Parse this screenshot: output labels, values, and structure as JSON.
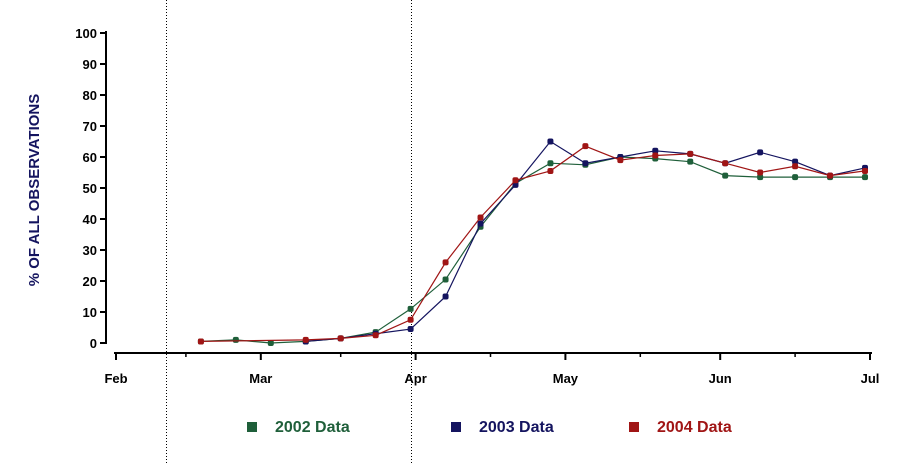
{
  "chart_data": {
    "type": "line",
    "title": "",
    "xlabel": "",
    "ylabel": "% OF ALL OBSERVATIONS",
    "ylim": [
      0,
      100
    ],
    "yticks": [
      0,
      10,
      20,
      30,
      40,
      50,
      60,
      70,
      80,
      90,
      100
    ],
    "x_unit": "day of year",
    "xlim": [
      32,
      183
    ],
    "xticks": [
      {
        "label": "Feb",
        "day": 32
      },
      {
        "label": "Mar",
        "day": 61
      },
      {
        "label": "Apr",
        "day": 92
      },
      {
        "label": "May",
        "day": 122
      },
      {
        "label": "Jun",
        "day": 153
      },
      {
        "label": "Jul",
        "day": 183
      }
    ],
    "x_minor_days": [
      46,
      77,
      107,
      137,
      168
    ],
    "reference_lines_day": [
      42,
      91
    ],
    "legend_position": "bottom",
    "series": [
      {
        "name": "2002 Data",
        "color": "#1f5f3a",
        "points": [
          [
            49,
            0.5
          ],
          [
            56,
            1
          ],
          [
            63,
            0
          ],
          [
            70,
            0.5
          ],
          [
            77,
            1.5
          ],
          [
            84,
            3.5
          ],
          [
            91,
            11
          ],
          [
            98,
            20.5
          ],
          [
            105,
            37.5
          ],
          [
            112,
            51.5
          ],
          [
            119,
            58
          ],
          [
            126,
            57.5
          ],
          [
            133,
            60
          ],
          [
            140,
            59.5
          ],
          [
            147,
            58.5
          ],
          [
            154,
            54
          ],
          [
            161,
            53.5
          ],
          [
            168,
            53.5
          ],
          [
            175,
            53.5
          ],
          [
            182,
            53.5
          ]
        ]
      },
      {
        "name": "2003 Data",
        "color": "#14145f",
        "points": [
          [
            70,
            0.5
          ],
          [
            77,
            1.5
          ],
          [
            84,
            3
          ],
          [
            91,
            4.5
          ],
          [
            98,
            15
          ],
          [
            105,
            38.5
          ],
          [
            112,
            51
          ],
          [
            119,
            65
          ],
          [
            126,
            58
          ],
          [
            133,
            60
          ],
          [
            140,
            62
          ],
          [
            147,
            61
          ],
          [
            154,
            58
          ],
          [
            161,
            61.5
          ],
          [
            168,
            58.5
          ],
          [
            175,
            54
          ],
          [
            182,
            56.5
          ]
        ]
      },
      {
        "name": "2004 Data",
        "color": "#a01515",
        "points": [
          [
            49,
            0.5
          ],
          [
            70,
            1
          ],
          [
            77,
            1.5
          ],
          [
            84,
            2.5
          ],
          [
            91,
            7.5
          ],
          [
            98,
            26
          ],
          [
            105,
            40.5
          ],
          [
            112,
            52.5
          ],
          [
            119,
            55.5
          ],
          [
            126,
            63.5
          ],
          [
            133,
            59
          ],
          [
            140,
            60.5
          ],
          [
            147,
            61
          ],
          [
            154,
            58
          ],
          [
            161,
            55
          ],
          [
            168,
            57
          ],
          [
            175,
            54
          ],
          [
            182,
            55.5
          ]
        ]
      }
    ]
  }
}
